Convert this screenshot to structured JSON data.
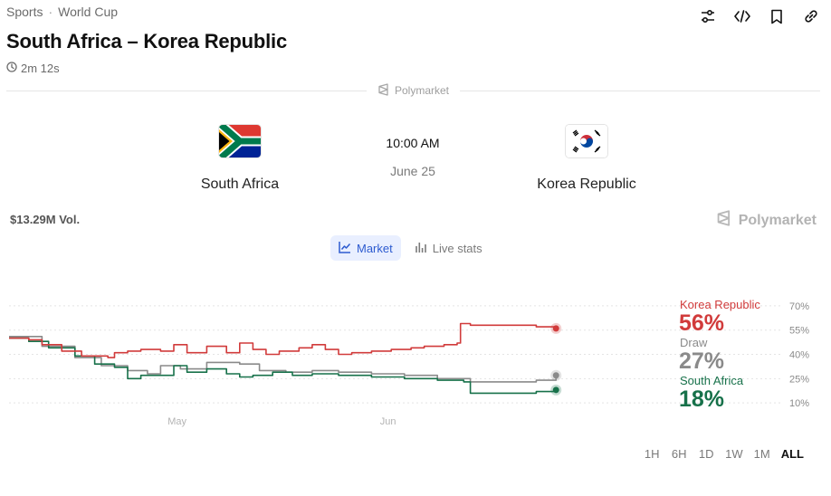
{
  "breadcrumb": {
    "first": "Sports",
    "separator": "·",
    "second": "World Cup"
  },
  "title": "South Africa – Korea Republic",
  "timer": "2m 12s",
  "brand": "Polymarket",
  "teams": {
    "home": {
      "name": "South Africa"
    },
    "away": {
      "name": "Korea Republic"
    }
  },
  "kickoff": {
    "time": "10:00 AM",
    "date": "June 25"
  },
  "volume": "$13.29M Vol.",
  "tabs": [
    {
      "label": "Market",
      "active": true
    },
    {
      "label": "Live stats",
      "active": false
    }
  ],
  "ranges": [
    {
      "label": "1H",
      "active": false
    },
    {
      "label": "6H",
      "active": false
    },
    {
      "label": "1D",
      "active": false
    },
    {
      "label": "1W",
      "active": false
    },
    {
      "label": "1M",
      "active": false
    },
    {
      "label": "ALL",
      "active": true
    }
  ],
  "colors": {
    "korea": "#d13b3b",
    "draw": "#8a8a8a",
    "south_africa": "#17714a"
  },
  "chart_data": {
    "type": "line",
    "ylim": [
      0,
      80
    ],
    "y_ticks": [
      "70%",
      "55%",
      "40%",
      "25%",
      "10%"
    ],
    "y_tick_values": [
      70,
      55,
      40,
      25,
      10
    ],
    "x_ticks": [
      {
        "label": "May",
        "t": 0.255
      },
      {
        "label": "Jun",
        "t": 0.575
      }
    ],
    "series": [
      {
        "name": "Korea Republic",
        "current_label": "56%",
        "color": "#d13b3b",
        "points": [
          [
            0,
            50
          ],
          [
            0.03,
            49
          ],
          [
            0.05,
            46
          ],
          [
            0.08,
            42
          ],
          [
            0.11,
            39
          ],
          [
            0.15,
            38
          ],
          [
            0.16,
            41
          ],
          [
            0.18,
            42
          ],
          [
            0.2,
            43
          ],
          [
            0.23,
            42
          ],
          [
            0.25,
            46
          ],
          [
            0.27,
            41
          ],
          [
            0.3,
            45
          ],
          [
            0.33,
            41
          ],
          [
            0.35,
            47
          ],
          [
            0.37,
            43
          ],
          [
            0.39,
            40
          ],
          [
            0.41,
            42
          ],
          [
            0.44,
            44
          ],
          [
            0.46,
            46
          ],
          [
            0.48,
            43
          ],
          [
            0.5,
            40
          ],
          [
            0.52,
            41
          ],
          [
            0.55,
            42
          ],
          [
            0.58,
            43
          ],
          [
            0.61,
            44
          ],
          [
            0.63,
            45
          ],
          [
            0.66,
            46
          ],
          [
            0.68,
            47
          ],
          [
            0.685,
            59
          ],
          [
            0.7,
            58
          ],
          [
            0.75,
            58
          ],
          [
            0.8,
            57
          ],
          [
            0.83,
            56
          ]
        ]
      },
      {
        "name": "Draw",
        "current_label": "27%",
        "color": "#8a8a8a",
        "points": [
          [
            0,
            51
          ],
          [
            0.05,
            45
          ],
          [
            0.1,
            38
          ],
          [
            0.14,
            33
          ],
          [
            0.18,
            30
          ],
          [
            0.21,
            28
          ],
          [
            0.23,
            33
          ],
          [
            0.26,
            31
          ],
          [
            0.3,
            35
          ],
          [
            0.35,
            34
          ],
          [
            0.38,
            30
          ],
          [
            0.42,
            29
          ],
          [
            0.46,
            30
          ],
          [
            0.5,
            29
          ],
          [
            0.55,
            28
          ],
          [
            0.6,
            27
          ],
          [
            0.65,
            25
          ],
          [
            0.7,
            23
          ],
          [
            0.75,
            23
          ],
          [
            0.8,
            24
          ],
          [
            0.83,
            27
          ]
        ]
      },
      {
        "name": "South Africa",
        "current_label": "18%",
        "color": "#17714a",
        "points": [
          [
            0,
            50
          ],
          [
            0.03,
            48
          ],
          [
            0.06,
            44
          ],
          [
            0.1,
            39
          ],
          [
            0.13,
            34
          ],
          [
            0.16,
            32
          ],
          [
            0.18,
            25
          ],
          [
            0.2,
            27
          ],
          [
            0.23,
            27
          ],
          [
            0.25,
            33
          ],
          [
            0.27,
            29
          ],
          [
            0.3,
            31
          ],
          [
            0.33,
            28
          ],
          [
            0.35,
            26
          ],
          [
            0.37,
            27
          ],
          [
            0.4,
            29
          ],
          [
            0.43,
            27
          ],
          [
            0.46,
            28
          ],
          [
            0.5,
            27
          ],
          [
            0.55,
            26
          ],
          [
            0.6,
            25
          ],
          [
            0.65,
            24
          ],
          [
            0.69,
            23
          ],
          [
            0.7,
            16
          ],
          [
            0.75,
            16
          ],
          [
            0.8,
            17
          ],
          [
            0.83,
            18
          ]
        ]
      }
    ]
  }
}
